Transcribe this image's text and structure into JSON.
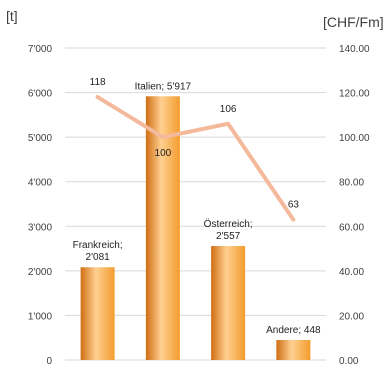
{
  "chart_data": {
    "type": "bar",
    "left_unit": "[t]",
    "right_unit": "[CHF/Fm]",
    "left_ticks": [
      "0",
      "1'000",
      "2'000",
      "3'000",
      "4'000",
      "5'000",
      "6'000",
      "7'000"
    ],
    "right_ticks": [
      "0.00",
      "20.00",
      "40.00",
      "60.00",
      "80.00",
      "100.00",
      "120.00",
      "140.00"
    ],
    "left_ylim": [
      0,
      7000
    ],
    "right_ylim": [
      0,
      140
    ],
    "grid": true,
    "categories": [
      "Frankreich",
      "Italien",
      "Österreich",
      "Andere"
    ],
    "series": [
      {
        "kind": "bar",
        "axis": "left",
        "values": [
          2081,
          5917,
          2557,
          448
        ],
        "labels": [
          [
            "Frankreich;",
            "2'081"
          ],
          [
            "Italien; 5'917"
          ],
          [
            "Österreich;",
            "2'557"
          ],
          [
            "Andere; 448"
          ]
        ],
        "color": "#f39c2e",
        "color_dark": "#cf6d14",
        "color_light": "#ffd091"
      },
      {
        "kind": "line",
        "axis": "right",
        "values": [
          118,
          100,
          106,
          63
        ],
        "labels": [
          "118",
          "100",
          "106",
          "63"
        ],
        "color": "#f4b89b"
      }
    ]
  }
}
